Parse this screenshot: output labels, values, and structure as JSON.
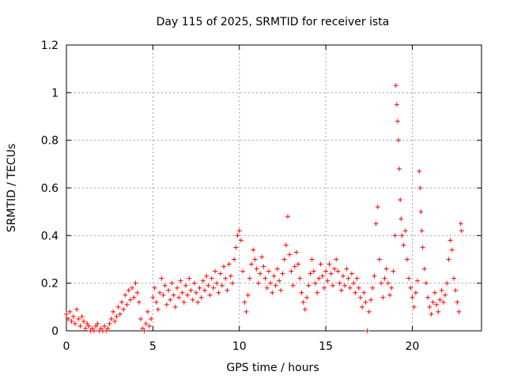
{
  "chart_data": {
    "type": "scatter",
    "title": "Day 115 of 2025, SRMTID for receiver ista",
    "xlabel": "GPS time / hours",
    "ylabel": "SRMTID / TECUs",
    "xlim": [
      0,
      24
    ],
    "ylim": [
      0,
      1.2
    ],
    "xticks": [
      0,
      5,
      10,
      15,
      20
    ],
    "xtick_labels": [
      "0",
      "5",
      "10",
      "15",
      "20"
    ],
    "yticks": [
      0,
      0.2,
      0.4,
      0.6,
      0.8,
      1.0,
      1.2
    ],
    "ytick_labels": [
      "0",
      "0.2",
      "0.4",
      "0.6",
      "0.8",
      "1",
      "1.2"
    ],
    "grid": true,
    "marker": "plus",
    "color": "#ff0000",
    "series": [
      {
        "name": "SRMTID",
        "points": [
          [
            0.0,
            0.07
          ],
          [
            0.1,
            0.05
          ],
          [
            0.2,
            0.08
          ],
          [
            0.3,
            0.04
          ],
          [
            0.4,
            0.06
          ],
          [
            0.5,
            0.03
          ],
          [
            0.6,
            0.09
          ],
          [
            0.7,
            0.05
          ],
          [
            0.8,
            0.02
          ],
          [
            0.9,
            0.06
          ],
          [
            1.0,
            0.04
          ],
          [
            1.1,
            0.01
          ],
          [
            1.2,
            0.03
          ],
          [
            1.3,
            0.02
          ],
          [
            1.4,
            0.0
          ],
          [
            1.5,
            0.01
          ],
          [
            1.6,
            0.0
          ],
          [
            1.7,
            0.02
          ],
          [
            1.8,
            0.03
          ],
          [
            1.9,
            0.0
          ],
          [
            2.0,
            0.01
          ],
          [
            2.1,
            0.0
          ],
          [
            2.2,
            0.02
          ],
          [
            2.3,
            0.0
          ],
          [
            2.4,
            0.01
          ],
          [
            2.5,
            0.03
          ],
          [
            2.6,
            0.05
          ],
          [
            2.7,
            0.08
          ],
          [
            2.8,
            0.04
          ],
          [
            2.9,
            0.06
          ],
          [
            3.0,
            0.1
          ],
          [
            3.1,
            0.07
          ],
          [
            3.2,
            0.12
          ],
          [
            3.3,
            0.09
          ],
          [
            3.4,
            0.15
          ],
          [
            3.5,
            0.11
          ],
          [
            3.6,
            0.17
          ],
          [
            3.7,
            0.13
          ],
          [
            3.8,
            0.18
          ],
          [
            3.9,
            0.14
          ],
          [
            4.0,
            0.2
          ],
          [
            4.1,
            0.16
          ],
          [
            4.2,
            0.12
          ],
          [
            4.3,
            0.05
          ],
          [
            4.4,
            0.01
          ],
          [
            4.5,
            0.0
          ],
          [
            4.6,
            0.03
          ],
          [
            4.7,
            0.08
          ],
          [
            4.8,
            0.02
          ],
          [
            4.9,
            0.05
          ],
          [
            5.0,
            0.14
          ],
          [
            5.1,
            0.18
          ],
          [
            5.2,
            0.12
          ],
          [
            5.3,
            0.09
          ],
          [
            5.4,
            0.16
          ],
          [
            5.5,
            0.22
          ],
          [
            5.6,
            0.15
          ],
          [
            5.7,
            0.19
          ],
          [
            5.8,
            0.11
          ],
          [
            5.9,
            0.17
          ],
          [
            6.0,
            0.13
          ],
          [
            6.1,
            0.2
          ],
          [
            6.2,
            0.15
          ],
          [
            6.3,
            0.1
          ],
          [
            6.4,
            0.18
          ],
          [
            6.5,
            0.14
          ],
          [
            6.6,
            0.21
          ],
          [
            6.7,
            0.16
          ],
          [
            6.8,
            0.12
          ],
          [
            6.9,
            0.19
          ],
          [
            7.0,
            0.15
          ],
          [
            7.1,
            0.22
          ],
          [
            7.2,
            0.17
          ],
          [
            7.3,
            0.13
          ],
          [
            7.4,
            0.2
          ],
          [
            7.5,
            0.16
          ],
          [
            7.6,
            0.12
          ],
          [
            7.7,
            0.18
          ],
          [
            7.8,
            0.14
          ],
          [
            7.9,
            0.21
          ],
          [
            8.0,
            0.17
          ],
          [
            8.1,
            0.23
          ],
          [
            8.2,
            0.19
          ],
          [
            8.3,
            0.15
          ],
          [
            8.4,
            0.22
          ],
          [
            8.5,
            0.18
          ],
          [
            8.6,
            0.25
          ],
          [
            8.7,
            0.2
          ],
          [
            8.8,
            0.16
          ],
          [
            8.9,
            0.24
          ],
          [
            9.0,
            0.19
          ],
          [
            9.1,
            0.27
          ],
          [
            9.2,
            0.22
          ],
          [
            9.3,
            0.17
          ],
          [
            9.4,
            0.28
          ],
          [
            9.5,
            0.23
          ],
          [
            9.6,
            0.2
          ],
          [
            9.7,
            0.3
          ],
          [
            9.8,
            0.35
          ],
          [
            9.9,
            0.4
          ],
          [
            10.0,
            0.42
          ],
          [
            10.1,
            0.38
          ],
          [
            10.2,
            0.25
          ],
          [
            10.3,
            0.12
          ],
          [
            10.4,
            0.08
          ],
          [
            10.5,
            0.15
          ],
          [
            10.6,
            0.22
          ],
          [
            10.7,
            0.28
          ],
          [
            10.8,
            0.34
          ],
          [
            10.9,
            0.3
          ],
          [
            11.0,
            0.26
          ],
          [
            11.1,
            0.2
          ],
          [
            11.2,
            0.24
          ],
          [
            11.3,
            0.31
          ],
          [
            11.4,
            0.27
          ],
          [
            11.5,
            0.22
          ],
          [
            11.6,
            0.18
          ],
          [
            11.7,
            0.25
          ],
          [
            11.8,
            0.2
          ],
          [
            11.9,
            0.16
          ],
          [
            12.0,
            0.23
          ],
          [
            12.1,
            0.19
          ],
          [
            12.2,
            0.26
          ],
          [
            12.3,
            0.21
          ],
          [
            12.4,
            0.17
          ],
          [
            12.5,
            0.24
          ],
          [
            12.6,
            0.3
          ],
          [
            12.7,
            0.36
          ],
          [
            12.8,
            0.48
          ],
          [
            12.9,
            0.32
          ],
          [
            13.0,
            0.25
          ],
          [
            13.1,
            0.19
          ],
          [
            13.2,
            0.27
          ],
          [
            13.3,
            0.33
          ],
          [
            13.4,
            0.28
          ],
          [
            13.5,
            0.22
          ],
          [
            13.6,
            0.16
          ],
          [
            13.7,
            0.12
          ],
          [
            13.8,
            0.09
          ],
          [
            13.9,
            0.14
          ],
          [
            14.0,
            0.19
          ],
          [
            14.1,
            0.24
          ],
          [
            14.2,
            0.3
          ],
          [
            14.3,
            0.25
          ],
          [
            14.4,
            0.2
          ],
          [
            14.5,
            0.16
          ],
          [
            14.6,
            0.22
          ],
          [
            14.7,
            0.28
          ],
          [
            14.8,
            0.23
          ],
          [
            14.9,
            0.18
          ],
          [
            15.0,
            0.25
          ],
          [
            15.1,
            0.21
          ],
          [
            15.2,
            0.28
          ],
          [
            15.3,
            0.24
          ],
          [
            15.4,
            0.19
          ],
          [
            15.5,
            0.26
          ],
          [
            15.6,
            0.3
          ],
          [
            15.7,
            0.25
          ],
          [
            15.8,
            0.2
          ],
          [
            15.9,
            0.17
          ],
          [
            16.0,
            0.23
          ],
          [
            16.1,
            0.19
          ],
          [
            16.2,
            0.26
          ],
          [
            16.3,
            0.22
          ],
          [
            16.4,
            0.18
          ],
          [
            16.5,
            0.24
          ],
          [
            16.6,
            0.2
          ],
          [
            16.7,
            0.16
          ],
          [
            16.8,
            0.22
          ],
          [
            16.9,
            0.18
          ],
          [
            17.0,
            0.14
          ],
          [
            17.1,
            0.1
          ],
          [
            17.2,
            0.16
          ],
          [
            17.3,
            0.12
          ],
          [
            17.4,
            0.0
          ],
          [
            17.5,
            0.08
          ],
          [
            17.6,
            0.13
          ],
          [
            17.7,
            0.18
          ],
          [
            17.8,
            0.23
          ],
          [
            17.9,
            0.45
          ],
          [
            18.0,
            0.52
          ],
          [
            18.1,
            0.3
          ],
          [
            18.2,
            0.2
          ],
          [
            18.3,
            0.14
          ],
          [
            18.4,
            0.22
          ],
          [
            18.5,
            0.26
          ],
          [
            18.6,
            0.2
          ],
          [
            18.7,
            0.15
          ],
          [
            18.8,
            0.18
          ],
          [
            18.9,
            0.25
          ],
          [
            19.0,
            0.4
          ],
          [
            19.05,
            1.03
          ],
          [
            19.1,
            0.95
          ],
          [
            19.15,
            0.88
          ],
          [
            19.2,
            0.8
          ],
          [
            19.25,
            0.68
          ],
          [
            19.3,
            0.55
          ],
          [
            19.35,
            0.47
          ],
          [
            19.4,
            0.4
          ],
          [
            19.5,
            0.36
          ],
          [
            19.6,
            0.42
          ],
          [
            19.7,
            0.3
          ],
          [
            19.8,
            0.22
          ],
          [
            19.9,
            0.18
          ],
          [
            20.0,
            0.14
          ],
          [
            20.1,
            0.1
          ],
          [
            20.2,
            0.16
          ],
          [
            20.3,
            0.21
          ],
          [
            20.4,
            0.67
          ],
          [
            20.45,
            0.6
          ],
          [
            20.5,
            0.5
          ],
          [
            20.55,
            0.42
          ],
          [
            20.6,
            0.35
          ],
          [
            20.7,
            0.26
          ],
          [
            20.8,
            0.2
          ],
          [
            20.9,
            0.14
          ],
          [
            21.0,
            0.1
          ],
          [
            21.1,
            0.07
          ],
          [
            21.2,
            0.12
          ],
          [
            21.3,
            0.16
          ],
          [
            21.4,
            0.11
          ],
          [
            21.5,
            0.08
          ],
          [
            21.6,
            0.13
          ],
          [
            21.7,
            0.17
          ],
          [
            21.8,
            0.12
          ],
          [
            21.9,
            0.15
          ],
          [
            22.0,
            0.2
          ],
          [
            22.1,
            0.3
          ],
          [
            22.2,
            0.38
          ],
          [
            22.3,
            0.34
          ],
          [
            22.4,
            0.22
          ],
          [
            22.5,
            0.17
          ],
          [
            22.6,
            0.12
          ],
          [
            22.7,
            0.08
          ],
          [
            22.8,
            0.45
          ],
          [
            22.85,
            0.42
          ]
        ]
      }
    ]
  }
}
